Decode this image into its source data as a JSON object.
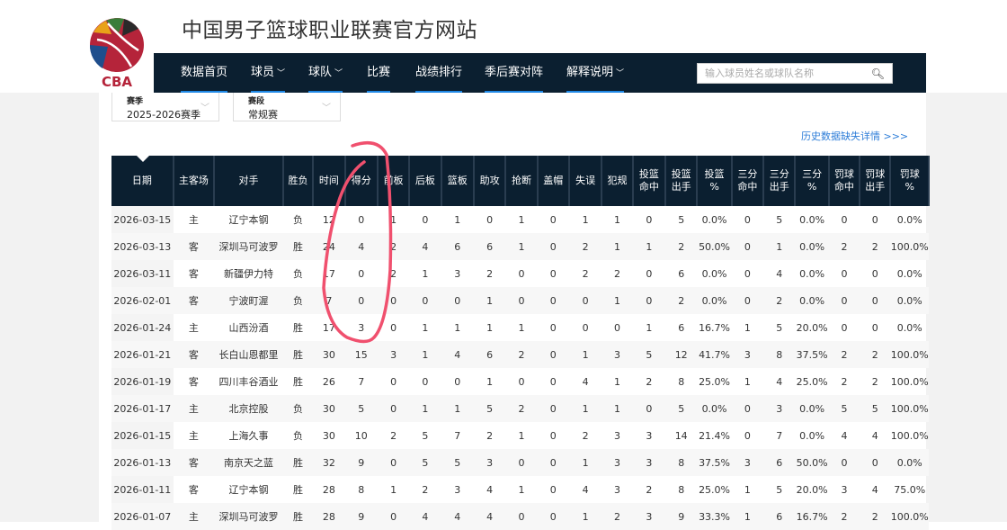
{
  "header": {
    "site_title": "中国男子篮球职业联赛官方网站",
    "logo_text": "CBA"
  },
  "nav": {
    "items": [
      {
        "label": "数据首页",
        "dropdown": false
      },
      {
        "label": "球员",
        "dropdown": true
      },
      {
        "label": "球队",
        "dropdown": true
      },
      {
        "label": "比赛",
        "dropdown": false
      },
      {
        "label": "战绩排行",
        "dropdown": false
      },
      {
        "label": "季后赛对阵",
        "dropdown": false
      },
      {
        "label": "解释说明",
        "dropdown": true
      }
    ],
    "search_placeholder": "输入球员姓名或球队名称",
    "search_icon": "search-icon"
  },
  "filters": {
    "season": {
      "label": "赛季",
      "value": "2025-2026赛季"
    },
    "stage": {
      "label": "赛段",
      "value": "常规赛"
    }
  },
  "history_link": "历史数据缺失详情 >>>",
  "table": {
    "columns": [
      "日期",
      "主客场",
      "对手",
      "胜负",
      "时间",
      "得分",
      "前板",
      "后板",
      "篮板",
      "助攻",
      "抢断",
      "盖帽",
      "失误",
      "犯规",
      "投篮\n命中",
      "投篮\n出手",
      "投篮\n%",
      "三分\n命中",
      "三分\n出手",
      "三分\n%",
      "罚球\n命中",
      "罚球\n出手",
      "罚球\n%"
    ],
    "rows": [
      [
        "2026-03-15",
        "主",
        "辽宁本钢",
        "负",
        "12",
        "0",
        "1",
        "0",
        "1",
        "0",
        "1",
        "0",
        "1",
        "1",
        "0",
        "5",
        "0.0%",
        "0",
        "5",
        "0.0%",
        "0",
        "0",
        "0.0%"
      ],
      [
        "2026-03-13",
        "客",
        "深圳马可波罗",
        "胜",
        "24",
        "4",
        "2",
        "4",
        "6",
        "6",
        "1",
        "0",
        "2",
        "1",
        "1",
        "2",
        "50.0%",
        "0",
        "1",
        "0.0%",
        "2",
        "2",
        "100.0%"
      ],
      [
        "2026-03-11",
        "客",
        "新疆伊力特",
        "负",
        "17",
        "0",
        "2",
        "1",
        "3",
        "2",
        "0",
        "0",
        "2",
        "2",
        "0",
        "6",
        "0.0%",
        "0",
        "4",
        "0.0%",
        "0",
        "0",
        "0.0%"
      ],
      [
        "2026-02-01",
        "客",
        "宁波町渥",
        "负",
        "7",
        "0",
        "0",
        "0",
        "0",
        "1",
        "0",
        "0",
        "0",
        "1",
        "0",
        "2",
        "0.0%",
        "0",
        "2",
        "0.0%",
        "0",
        "0",
        "0.0%"
      ],
      [
        "2026-01-24",
        "主",
        "山西汾酒",
        "胜",
        "17",
        "3",
        "0",
        "1",
        "1",
        "1",
        "1",
        "0",
        "0",
        "0",
        "1",
        "6",
        "16.7%",
        "1",
        "5",
        "20.0%",
        "0",
        "0",
        "0.0%"
      ],
      [
        "2026-01-21",
        "客",
        "长白山恩都里",
        "胜",
        "30",
        "15",
        "3",
        "1",
        "4",
        "6",
        "2",
        "0",
        "1",
        "3",
        "5",
        "12",
        "41.7%",
        "3",
        "8",
        "37.5%",
        "2",
        "2",
        "100.0%"
      ],
      [
        "2026-01-19",
        "客",
        "四川丰谷酒业",
        "胜",
        "26",
        "7",
        "0",
        "0",
        "0",
        "1",
        "0",
        "0",
        "4",
        "1",
        "2",
        "8",
        "25.0%",
        "1",
        "4",
        "25.0%",
        "2",
        "2",
        "100.0%"
      ],
      [
        "2026-01-17",
        "主",
        "北京控股",
        "负",
        "30",
        "5",
        "0",
        "1",
        "1",
        "5",
        "2",
        "0",
        "1",
        "1",
        "0",
        "5",
        "0.0%",
        "0",
        "3",
        "0.0%",
        "5",
        "5",
        "100.0%"
      ],
      [
        "2026-01-15",
        "主",
        "上海久事",
        "负",
        "30",
        "10",
        "2",
        "5",
        "7",
        "2",
        "1",
        "0",
        "2",
        "3",
        "3",
        "14",
        "21.4%",
        "0",
        "7",
        "0.0%",
        "4",
        "4",
        "100.0%"
      ],
      [
        "2026-01-13",
        "客",
        "南京天之蓝",
        "胜",
        "32",
        "9",
        "0",
        "5",
        "5",
        "3",
        "0",
        "0",
        "1",
        "3",
        "3",
        "8",
        "37.5%",
        "3",
        "6",
        "50.0%",
        "0",
        "0",
        "0.0%"
      ],
      [
        "2026-01-11",
        "客",
        "辽宁本钢",
        "胜",
        "28",
        "8",
        "1",
        "2",
        "3",
        "4",
        "1",
        "0",
        "4",
        "3",
        "2",
        "8",
        "25.0%",
        "1",
        "5",
        "20.0%",
        "3",
        "4",
        "75.0%"
      ],
      [
        "2026-01-07",
        "主",
        "深圳马可波罗",
        "胜",
        "28",
        "9",
        "0",
        "4",
        "4",
        "4",
        "0",
        "0",
        "1",
        "2",
        "3",
        "9",
        "33.3%",
        "1",
        "6",
        "16.7%",
        "2",
        "2",
        "100.0%"
      ]
    ]
  },
  "colors": {
    "nav_bg": "#0b1f30",
    "accent": "#1e88e5",
    "link": "#2f7ed8",
    "annotation": "#f0506e"
  }
}
